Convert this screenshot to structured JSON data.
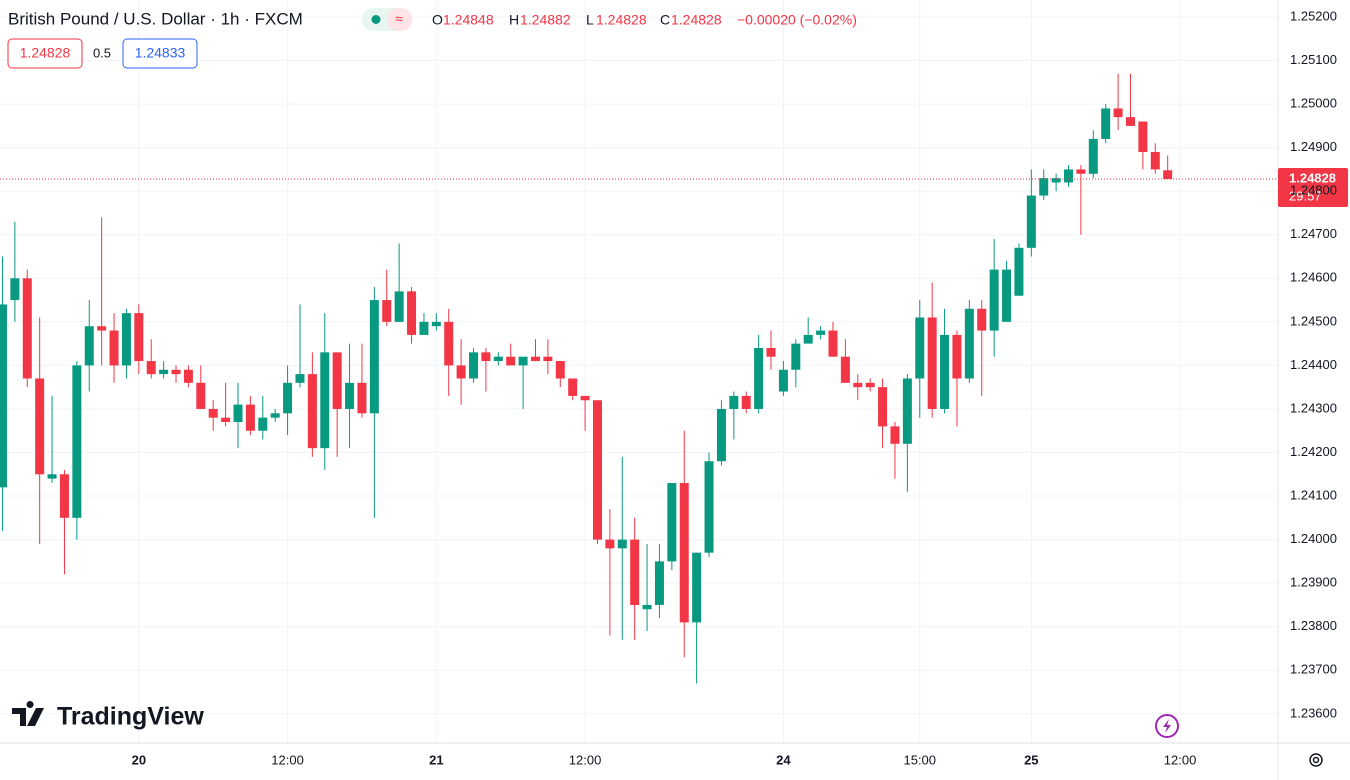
{
  "header": {
    "symbol": "British Pound / U.S. Dollar · 1h · FXCM",
    "o_letter": "O",
    "h_letter": "H",
    "l_letter": "L",
    "c_letter": "C",
    "change": "−0.00020 (−0.02%)"
  },
  "quote": {
    "bid": "1.24828",
    "spread": "0.5",
    "ask": "1.24833"
  },
  "countdown": "29:57",
  "logo": "TradingView",
  "chart_data": {
    "type": "candlestick",
    "title": "British Pound / U.S. Dollar · 1h · FXCM",
    "up_color": "#089981",
    "down_color": "#f23645",
    "grid": true,
    "open": [
      1.2412,
      1.2455,
      1.246,
      1.2437,
      1.2414,
      1.2415,
      1.2405,
      1.244,
      1.2449,
      1.2448,
      1.244,
      1.2452,
      1.2441,
      1.2438,
      1.2439,
      1.2439,
      1.2436,
      1.243,
      1.2428,
      1.2427,
      1.2431,
      1.2425,
      1.2428,
      1.2429,
      1.2436,
      1.2438,
      1.2421,
      1.2443,
      1.243,
      1.2436,
      1.2429,
      1.2455,
      1.245,
      1.2457,
      1.2447,
      1.2449,
      1.245,
      1.244,
      1.2437,
      1.2443,
      1.2441,
      1.2442,
      1.244,
      1.2442,
      1.2442,
      1.2441,
      1.2437,
      1.2433,
      1.2432,
      1.24,
      1.2398,
      1.24,
      1.2384,
      1.2385,
      1.2395,
      1.2413,
      1.2381,
      1.2397,
      1.2418,
      1.243,
      1.2433,
      1.243,
      1.2444,
      1.2434,
      1.2439,
      1.2445,
      1.2447,
      1.2448,
      1.2442,
      1.2436,
      1.2436,
      1.2435,
      1.2426,
      1.2422,
      1.2437,
      1.2451,
      1.243,
      1.2447,
      1.2437,
      1.2453,
      1.2448,
      1.245,
      1.2456,
      1.2467,
      1.2479,
      1.2482,
      1.2482,
      1.2485,
      1.2484,
      1.2492,
      1.2499,
      1.2497,
      1.2496,
      1.2489,
      1.24848
    ],
    "high": [
      1.2465,
      1.2473,
      1.2462,
      1.2451,
      1.2433,
      1.2416,
      1.2441,
      1.2455,
      1.2474,
      1.2452,
      1.2453,
      1.2454,
      1.2446,
      1.2441,
      1.244,
      1.244,
      1.244,
      1.2432,
      1.2436,
      1.2436,
      1.2433,
      1.2433,
      1.243,
      1.244,
      1.2454,
      1.2443,
      1.2452,
      1.2443,
      1.2445,
      1.2445,
      1.2458,
      1.2462,
      1.2468,
      1.2458,
      1.2452,
      1.2452,
      1.2453,
      1.2446,
      1.2444,
      1.2444,
      1.2443,
      1.2445,
      1.2442,
      1.2446,
      1.2446,
      1.2441,
      1.2437,
      1.2433,
      1.2432,
      1.2407,
      1.2419,
      1.2405,
      1.2399,
      1.2399,
      1.2413,
      1.2425,
      1.2397,
      1.242,
      1.2432,
      1.2434,
      1.2434,
      1.2447,
      1.2448,
      1.2441,
      1.2446,
      1.2451,
      1.2449,
      1.245,
      1.2446,
      1.2438,
      1.2437,
      1.2437,
      1.2427,
      1.2438,
      1.2455,
      1.2459,
      1.2453,
      1.2448,
      1.2455,
      1.2455,
      1.2469,
      1.2464,
      1.2468,
      1.2485,
      1.2485,
      1.2484,
      1.2486,
      1.2486,
      1.2494,
      1.25,
      1.2507,
      1.2507,
      1.2496,
      1.2491,
      1.24882
    ],
    "low": [
      1.2402,
      1.245,
      1.2435,
      1.2399,
      1.2413,
      1.2392,
      1.24,
      1.2434,
      1.244,
      1.2436,
      1.2437,
      1.2438,
      1.2437,
      1.2437,
      1.2436,
      1.2435,
      1.243,
      1.2425,
      1.2426,
      1.2421,
      1.2424,
      1.2423,
      1.2427,
      1.2424,
      1.2435,
      1.2419,
      1.2416,
      1.2419,
      1.2421,
      1.2428,
      1.2405,
      1.2449,
      1.245,
      1.2445,
      1.2447,
      1.2448,
      1.2433,
      1.2431,
      1.2436,
      1.2434,
      1.244,
      1.244,
      1.243,
      1.2441,
      1.2438,
      1.2435,
      1.2432,
      1.2425,
      1.2399,
      1.2378,
      1.2377,
      1.2377,
      1.2379,
      1.2382,
      1.2393,
      1.2373,
      1.2367,
      1.2396,
      1.2417,
      1.2423,
      1.2429,
      1.2429,
      1.2439,
      1.2433,
      1.2435,
      1.2445,
      1.2446,
      1.2442,
      1.2436,
      1.2432,
      1.2434,
      1.2421,
      1.2414,
      1.2411,
      1.2428,
      1.2428,
      1.2429,
      1.2426,
      1.2436,
      1.2433,
      1.2442,
      1.245,
      1.2456,
      1.2465,
      1.2478,
      1.248,
      1.2481,
      1.247,
      1.2483,
      1.2491,
      1.2494,
      1.2495,
      1.2485,
      1.2484,
      1.24828
    ],
    "close": [
      1.2454,
      1.246,
      1.2437,
      1.2415,
      1.2415,
      1.2405,
      1.244,
      1.2449,
      1.2448,
      1.244,
      1.2452,
      1.2441,
      1.2438,
      1.2439,
      1.2438,
      1.2436,
      1.243,
      1.2428,
      1.2427,
      1.2431,
      1.2425,
      1.2428,
      1.2429,
      1.2436,
      1.2438,
      1.2421,
      1.2443,
      1.243,
      1.2436,
      1.2429,
      1.2455,
      1.245,
      1.2457,
      1.2447,
      1.245,
      1.245,
      1.244,
      1.2437,
      1.2443,
      1.2441,
      1.2442,
      1.244,
      1.2442,
      1.2441,
      1.2441,
      1.2437,
      1.2433,
      1.2432,
      1.24,
      1.2398,
      1.24,
      1.2385,
      1.2385,
      1.2395,
      1.2413,
      1.2381,
      1.2397,
      1.2418,
      1.243,
      1.2433,
      1.243,
      1.2444,
      1.2442,
      1.2439,
      1.2445,
      1.2447,
      1.2448,
      1.2442,
      1.2436,
      1.2435,
      1.2435,
      1.2426,
      1.2422,
      1.2437,
      1.2451,
      1.243,
      1.2447,
      1.2437,
      1.2453,
      1.2448,
      1.2462,
      1.2462,
      1.2467,
      1.2479,
      1.2483,
      1.2483,
      1.2485,
      1.2484,
      1.2492,
      1.2499,
      1.2497,
      1.2495,
      1.2489,
      1.2485,
      1.24828
    ],
    "xlim": [
      -0.2,
      102.9
    ],
    "xticks": [
      {
        "value": 11,
        "label": "20"
      },
      {
        "value": 23,
        "label": "12:00"
      },
      {
        "value": 35,
        "label": "21"
      },
      {
        "value": 47,
        "label": "12:00"
      },
      {
        "value": 63,
        "label": "24"
      },
      {
        "value": 74,
        "label": "15:00"
      },
      {
        "value": 83,
        "label": "25"
      },
      {
        "value": 95,
        "label": "12:00"
      }
    ],
    "ylim": [
      1.23533,
      1.25239
    ],
    "yticks": [
      {
        "value": 1.236,
        "label": "1.23600"
      },
      {
        "value": 1.237,
        "label": "1.23700"
      },
      {
        "value": 1.238,
        "label": "1.23800"
      },
      {
        "value": 1.239,
        "label": "1.23900"
      },
      {
        "value": 1.24,
        "label": "1.24000"
      },
      {
        "value": 1.241,
        "label": "1.24100"
      },
      {
        "value": 1.242,
        "label": "1.24200"
      },
      {
        "value": 1.243,
        "label": "1.24300"
      },
      {
        "value": 1.244,
        "label": "1.24400"
      },
      {
        "value": 1.245,
        "label": "1.24500"
      },
      {
        "value": 1.246,
        "label": "1.24600"
      },
      {
        "value": 1.247,
        "label": "1.24700"
      },
      {
        "value": 1.248,
        "label": "1.24800"
      },
      {
        "value": 1.249,
        "label": "1.24900"
      },
      {
        "value": 1.25,
        "label": "1.25000"
      },
      {
        "value": 1.251,
        "label": "1.25100"
      },
      {
        "value": 1.252,
        "label": "1.25200"
      }
    ]
  }
}
